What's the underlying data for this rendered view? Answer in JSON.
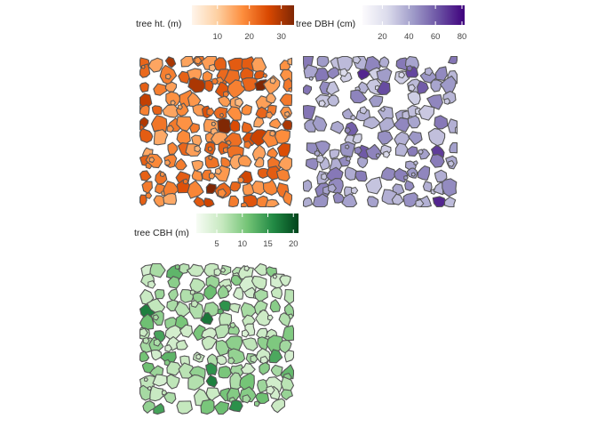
{
  "chart_data": [
    {
      "type": "heatmap",
      "subtype": "crown-polygon map",
      "legend_title": "tree ht. (m)",
      "legend_ticks": [
        10,
        20,
        30
      ],
      "value_range": [
        2,
        34
      ],
      "palette": [
        "#fff5eb",
        "#fdd0a2",
        "#fd8d3c",
        "#d94801",
        "#7f2704"
      ],
      "typical_value": 20,
      "outline_color": "#555555"
    },
    {
      "type": "heatmap",
      "subtype": "crown-polygon map",
      "legend_title": "tree DBH (cm)",
      "legend_ticks": [
        20,
        40,
        60,
        80
      ],
      "value_range": [
        5,
        82
      ],
      "palette": [
        "#fcfbfd",
        "#dadaeb",
        "#9e9ac8",
        "#6a51a3",
        "#3f007d"
      ],
      "typical_value": 40,
      "outline_color": "#555555"
    },
    {
      "type": "heatmap",
      "subtype": "crown-polygon map",
      "legend_title": "tree CBH (m)",
      "legend_ticks": [
        5,
        10,
        15,
        20
      ],
      "value_range": [
        1,
        21
      ],
      "palette": [
        "#f7fcf5",
        "#c7e9c0",
        "#74c476",
        "#238b45",
        "#00441b"
      ],
      "typical_value": 8,
      "outline_color": "#555555"
    }
  ]
}
